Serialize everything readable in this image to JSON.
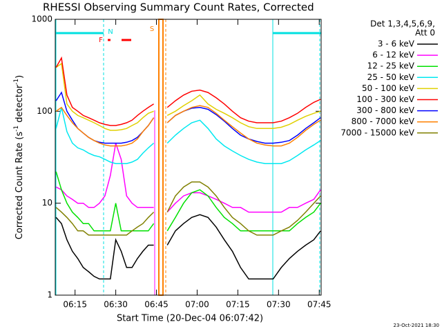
{
  "chart_data": {
    "type": "line",
    "title": "RHESSI Observing Summary Count Rates, Corrected",
    "xlabel": "Start Time (20-Dec-04 06:07:42)",
    "ylabel": [
      "Corrected Count Rate (s",
      "-1",
      " detector",
      "-1",
      ")"
    ],
    "legend_title": [
      "Det 1,3,4,5,6,9,",
      "Att 0"
    ],
    "footer": "23-Oct-2021 18:30",
    "log_y": true,
    "legend": "outside-right",
    "annotations": [
      {
        "text": "N",
        "color": "#00e0e0"
      },
      {
        "text": "F",
        "color": "#ff0000"
      },
      {
        "text": "S",
        "color": "#ff8000"
      }
    ],
    "xlim": [
      7.7,
      105.7
    ],
    "xticks": [
      {
        "value": 15,
        "label": "06:15"
      },
      {
        "value": 30,
        "label": "06:30"
      },
      {
        "value": 45,
        "label": "06:45"
      },
      {
        "value": 60,
        "label": "07:00"
      },
      {
        "value": 75,
        "label": "07:15"
      },
      {
        "value": 90,
        "label": "07:30"
      },
      {
        "value": 105,
        "label": "07:45"
      }
    ],
    "ylim": [
      1,
      1000
    ],
    "yticks": [
      1,
      10,
      100,
      1000
    ],
    "x": [
      8,
      10,
      12,
      14,
      16,
      18,
      20,
      22,
      24,
      26,
      28,
      30,
      32,
      34,
      36,
      38,
      40,
      42,
      44,
      46,
      49,
      52,
      55,
      58,
      61,
      64,
      67,
      70,
      73,
      76,
      79,
      82,
      85,
      88,
      91,
      94,
      97,
      100,
      103,
      105.5
    ],
    "series": [
      {
        "name": "3 - 6 keV",
        "color": "#000000",
        "values": [
          7,
          6,
          4,
          3,
          2.5,
          2,
          1.8,
          1.6,
          1.5,
          1.5,
          1.5,
          4,
          3,
          2,
          2,
          2.5,
          3,
          3.5,
          3.5,
          null,
          3.5,
          5,
          6,
          7,
          7.5,
          7,
          5.5,
          4,
          3,
          2,
          1.5,
          1.5,
          1.5,
          1.5,
          2,
          2.5,
          3,
          3.5,
          4,
          5
        ]
      },
      {
        "name": "6 - 12 keV",
        "color": "#ff00ff",
        "values": [
          15,
          14,
          12,
          11,
          10,
          10,
          9,
          9,
          10,
          12,
          20,
          45,
          30,
          12,
          10,
          9,
          9,
          9,
          9,
          null,
          8,
          10,
          12,
          13,
          13,
          12,
          11,
          10,
          9,
          9,
          8,
          8,
          8,
          8,
          8,
          9,
          9,
          10,
          11,
          14
        ]
      },
      {
        "name": "12 - 25 keV",
        "color": "#00e000",
        "values": [
          22,
          14,
          10,
          8,
          7,
          6,
          6,
          5,
          5,
          5,
          5,
          10,
          5,
          5,
          5,
          5,
          5,
          5,
          6,
          null,
          5,
          7,
          10,
          13,
          14,
          12,
          9,
          7,
          6,
          5,
          5,
          5,
          5,
          5,
          5,
          5,
          6,
          7,
          8,
          10
        ]
      },
      {
        "name": "25 - 50 keV",
        "color": "#00e8f0",
        "values": [
          65,
          110,
          60,
          45,
          40,
          38,
          35,
          33,
          32,
          30,
          28,
          27,
          27,
          27,
          28,
          30,
          35,
          40,
          45,
          null,
          45,
          55,
          65,
          75,
          80,
          65,
          50,
          42,
          37,
          33,
          30,
          28,
          27,
          27,
          27,
          29,
          33,
          38,
          43,
          48
        ]
      },
      {
        "name": "50 - 100 keV",
        "color": "#e0d000",
        "values": [
          300,
          330,
          120,
          100,
          90,
          85,
          80,
          75,
          70,
          65,
          62,
          62,
          63,
          65,
          70,
          75,
          85,
          95,
          100,
          null,
          90,
          100,
          115,
          130,
          150,
          120,
          105,
          95,
          85,
          75,
          68,
          65,
          65,
          65,
          67,
          72,
          80,
          88,
          95,
          100
        ]
      },
      {
        "name": "100 - 300 keV",
        "color": "#ff0000",
        "values": [
          300,
          380,
          150,
          110,
          100,
          90,
          85,
          80,
          75,
          72,
          70,
          70,
          72,
          75,
          80,
          90,
          100,
          110,
          120,
          null,
          110,
          130,
          150,
          165,
          170,
          160,
          140,
          120,
          100,
          85,
          78,
          75,
          75,
          75,
          78,
          85,
          95,
          110,
          125,
          135
        ]
      },
      {
        "name": "300 - 800 keV",
        "color": "#0000ff",
        "values": [
          130,
          160,
          100,
          80,
          65,
          58,
          52,
          48,
          46,
          45,
          45,
          45,
          45,
          46,
          48,
          52,
          60,
          70,
          85,
          null,
          75,
          90,
          100,
          108,
          110,
          105,
          92,
          78,
          65,
          55,
          50,
          47,
          45,
          45,
          46,
          48,
          55,
          65,
          75,
          85
        ]
      },
      {
        "name": "800 - 7000 keV",
        "color": "#ff8000",
        "values": [
          100,
          110,
          90,
          75,
          65,
          58,
          52,
          48,
          45,
          43,
          42,
          42,
          42,
          43,
          45,
          50,
          60,
          70,
          85,
          null,
          75,
          90,
          100,
          110,
          115,
          110,
          95,
          80,
          68,
          58,
          50,
          45,
          43,
          42,
          42,
          45,
          52,
          62,
          72,
          80
        ]
      },
      {
        "name": "7000 - 15000 keV",
        "color": "#808000",
        "values": [
          9,
          8,
          7,
          6,
          5,
          5,
          4.5,
          4.5,
          4.5,
          4.5,
          4.5,
          4.5,
          4.5,
          4.5,
          5,
          5.5,
          6,
          7,
          8,
          null,
          8,
          12,
          15,
          17,
          17,
          15,
          12,
          9,
          7,
          6,
          5,
          4.5,
          4.5,
          4.5,
          5,
          5.5,
          6.5,
          8,
          10,
          12
        ]
      }
    ]
  }
}
